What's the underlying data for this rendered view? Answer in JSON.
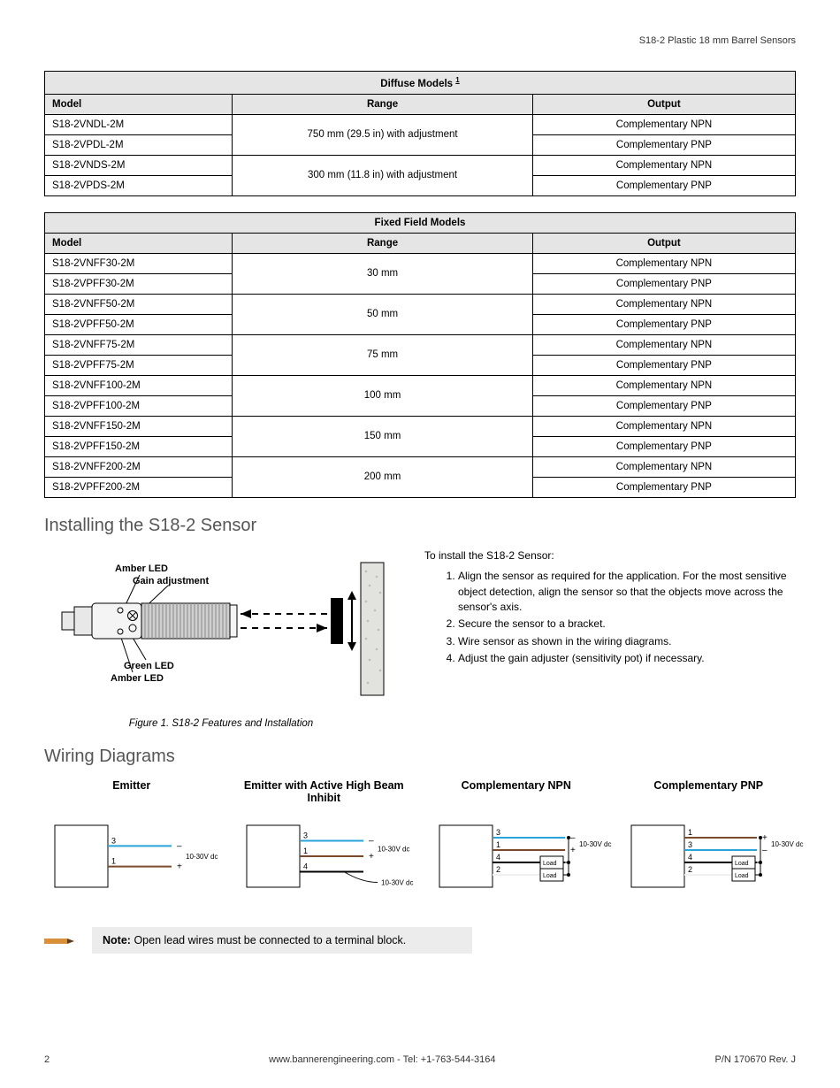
{
  "header": {
    "title": "S18-2 Plastic 18 mm Barrel Sensors"
  },
  "tables": {
    "diffuse": {
      "title": "Diffuse Models",
      "footnote_mark": "1",
      "columns": [
        "Model",
        "Range",
        "Output"
      ],
      "groups": [
        {
          "range": "750 mm (29.5 in) with adjustment",
          "rows": [
            {
              "model": "S18-2VNDL-2M",
              "output": "Complementary NPN"
            },
            {
              "model": "S18-2VPDL-2M",
              "output": "Complementary PNP"
            }
          ]
        },
        {
          "range": "300 mm (11.8 in) with adjustment",
          "rows": [
            {
              "model": "S18-2VNDS-2M",
              "output": "Complementary NPN"
            },
            {
              "model": "S18-2VPDS-2M",
              "output": "Complementary PNP"
            }
          ]
        }
      ]
    },
    "fixed": {
      "title": "Fixed Field Models",
      "columns": [
        "Model",
        "Range",
        "Output"
      ],
      "groups": [
        {
          "range": "30 mm",
          "rows": [
            {
              "model": "S18-2VNFF30-2M",
              "output": "Complementary NPN"
            },
            {
              "model": "S18-2VPFF30-2M",
              "output": "Complementary PNP"
            }
          ]
        },
        {
          "range": "50 mm",
          "rows": [
            {
              "model": "S18-2VNFF50-2M",
              "output": "Complementary NPN"
            },
            {
              "model": "S18-2VPFF50-2M",
              "output": "Complementary PNP"
            }
          ]
        },
        {
          "range": "75 mm",
          "rows": [
            {
              "model": "S18-2VNFF75-2M",
              "output": "Complementary NPN"
            },
            {
              "model": "S18-2VPFF75-2M",
              "output": "Complementary PNP"
            }
          ]
        },
        {
          "range": "100 mm",
          "rows": [
            {
              "model": "S18-2VNFF100-2M",
              "output": "Complementary NPN"
            },
            {
              "model": "S18-2VPFF100-2M",
              "output": "Complementary PNP"
            }
          ]
        },
        {
          "range": "150 mm",
          "rows": [
            {
              "model": "S18-2VNFF150-2M",
              "output": "Complementary NPN"
            },
            {
              "model": "S18-2VPFF150-2M",
              "output": "Complementary PNP"
            }
          ]
        },
        {
          "range": "200 mm",
          "rows": [
            {
              "model": "S18-2VNFF200-2M",
              "output": "Complementary NPN"
            },
            {
              "model": "S18-2VPFF200-2M",
              "output": "Complementary PNP"
            }
          ]
        }
      ]
    }
  },
  "install": {
    "heading": "Installing the S18-2 Sensor",
    "intro": "To install the S18-2 Sensor:",
    "steps": [
      "Align the sensor as required for the application. For the most sensitive object detection, align the sensor so that the objects move across the sensor's axis.",
      "Secure the sensor to a bracket.",
      "Wire sensor as shown in the wiring diagrams.",
      "Adjust the gain adjuster (sensitivity pot) if necessary."
    ],
    "caption": "Figure 1. S18-2 Features and Installation",
    "labels": {
      "amber_top": "Amber LED",
      "gain": "Gain adjustment",
      "green": "Green LED",
      "amber_bottom": "Amber LED"
    },
    "sensor_drawing": {
      "barrel_color": "#bfbfbf",
      "cap_color": "#e8e8e8",
      "arrow_color": "#000000",
      "target_fill": "#000000",
      "wall_fill": "#e2e2de",
      "wall_stroke": "#000000"
    }
  },
  "wiring": {
    "heading": "Wiring Diagrams",
    "diagrams": [
      {
        "title": "Emitter",
        "wires": [
          {
            "num": "3",
            "color": "#2aa3d9",
            "sign": "–"
          },
          {
            "num": "1",
            "color": "#7a4a2a",
            "sign": "+"
          }
        ],
        "voltage": "10-30V dc",
        "has_load": false
      },
      {
        "title": "Emitter with Active High Beam Inhibit",
        "wires": [
          {
            "num": "3",
            "color": "#2aa3d9",
            "sign": "–"
          },
          {
            "num": "1",
            "color": "#7a4a2a",
            "sign": "+"
          },
          {
            "num": "4",
            "color": "#000000",
            "sign": ""
          }
        ],
        "voltage": "10-30V dc",
        "has_load": false,
        "tap_label": "10-30V dc"
      },
      {
        "title": "Complementary NPN",
        "wires": [
          {
            "num": "3",
            "color": "#2aa3d9",
            "sign": "–"
          },
          {
            "num": "1",
            "color": "#7a4a2a",
            "sign": "+"
          },
          {
            "num": "4",
            "color": "#000000",
            "label": "Load"
          },
          {
            "num": "2",
            "color": "#f0f0f0",
            "label": "Load"
          }
        ],
        "voltage": "10-30V dc",
        "has_load": true
      },
      {
        "title": "Complementary PNP",
        "wires": [
          {
            "num": "1",
            "color": "#7a4a2a",
            "sign": "+"
          },
          {
            "num": "3",
            "color": "#2aa3d9",
            "sign": "–"
          },
          {
            "num": "4",
            "color": "#000000",
            "label": "Load"
          },
          {
            "num": "2",
            "color": "#f0f0f0",
            "label": "Load"
          }
        ],
        "voltage": "10-30V dc",
        "has_load": true
      }
    ]
  },
  "note": {
    "label": "Note:",
    "text": "Open lead wires must be connected to a terminal block.",
    "icon_color": "#d9903a"
  },
  "footer": {
    "page": "2",
    "center": "www.bannerengineering.com - Tel: +1-763-544-3164",
    "right": "P/N 170670 Rev. J"
  },
  "style": {
    "header_bg": "#e5e5e5",
    "border_color": "#000000",
    "note_bg": "#ececec",
    "heading_color": "#555555",
    "text_color": "#000000"
  }
}
